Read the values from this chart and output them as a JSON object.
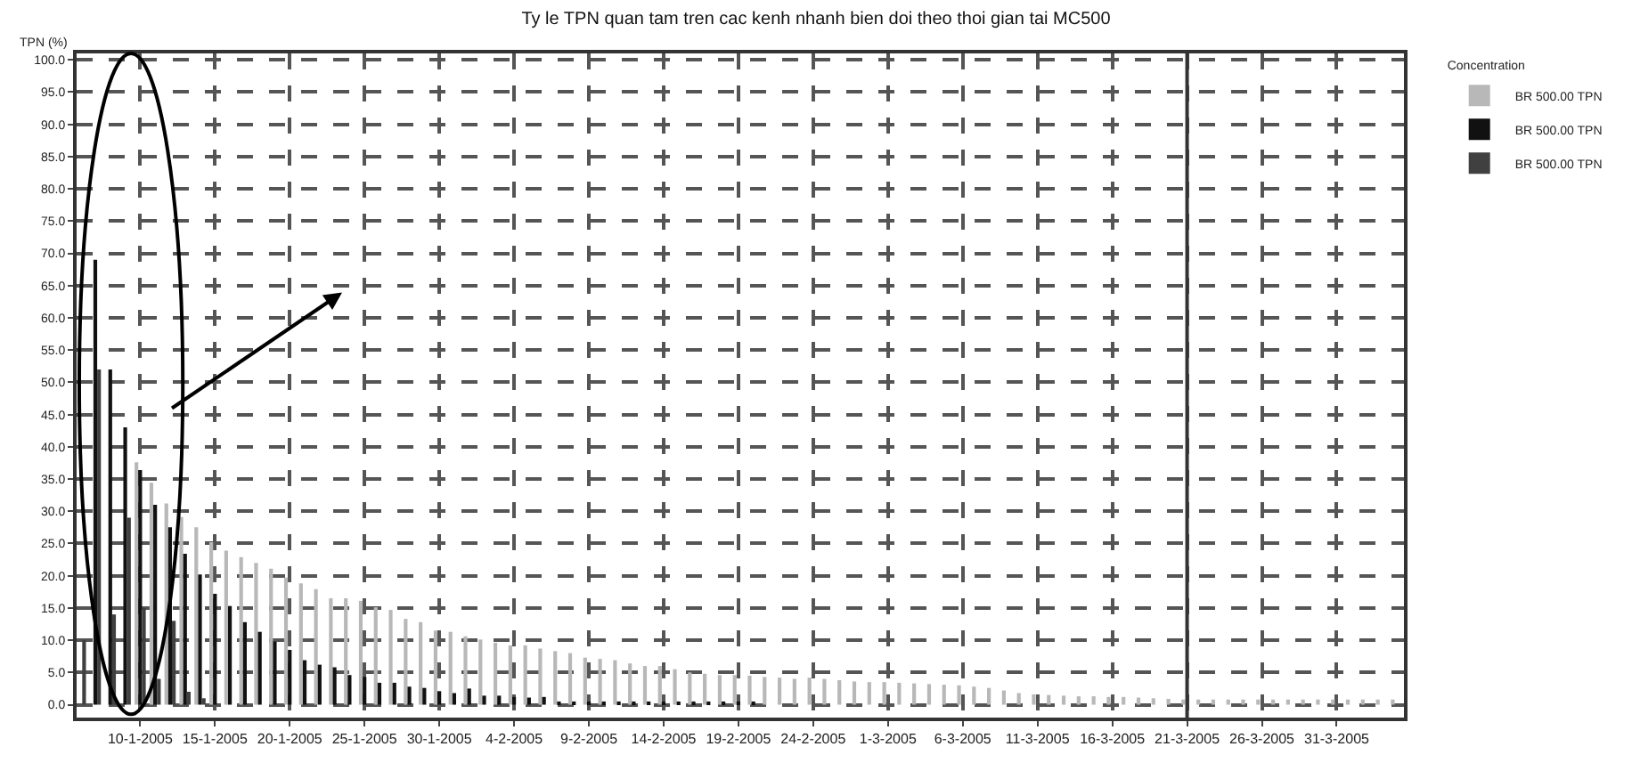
{
  "chart_data": {
    "type": "bar",
    "title": "Ty le TPN quan tam tren cac kenh nhanh bien doi theo thoi gian tai MC500",
    "ylabel": "TPN (%)",
    "legend_title": "Concentration",
    "x": [
      "2005-01-06",
      "2005-01-07",
      "2005-01-08",
      "2005-01-09",
      "2005-01-10",
      "2005-01-11",
      "2005-01-12",
      "2005-01-13",
      "2005-01-14",
      "2005-01-15",
      "2005-01-16",
      "2005-01-17",
      "2005-01-18",
      "2005-01-19",
      "2005-01-20",
      "2005-01-21",
      "2005-01-22",
      "2005-01-23",
      "2005-01-24",
      "2005-01-25",
      "2005-01-26",
      "2005-01-27",
      "2005-01-28",
      "2005-01-29",
      "2005-01-30",
      "2005-01-31",
      "2005-02-01",
      "2005-02-02",
      "2005-02-03",
      "2005-02-04",
      "2005-02-05",
      "2005-02-06",
      "2005-02-07",
      "2005-02-08",
      "2005-02-09",
      "2005-02-10",
      "2005-02-11",
      "2005-02-12",
      "2005-02-13",
      "2005-02-14",
      "2005-02-15",
      "2005-02-16",
      "2005-02-17",
      "2005-02-18",
      "2005-02-19",
      "2005-02-20",
      "2005-02-21",
      "2005-02-22",
      "2005-02-23",
      "2005-02-24",
      "2005-02-25",
      "2005-02-26",
      "2005-02-27",
      "2005-02-28",
      "2005-03-01",
      "2005-03-02",
      "2005-03-03",
      "2005-03-04",
      "2005-03-05",
      "2005-03-06",
      "2005-03-07",
      "2005-03-08",
      "2005-03-09",
      "2005-03-10",
      "2005-03-11",
      "2005-03-12",
      "2005-03-13",
      "2005-03-14",
      "2005-03-15",
      "2005-03-16",
      "2005-03-17",
      "2005-03-18",
      "2005-03-19",
      "2005-03-20",
      "2005-03-21",
      "2005-03-22",
      "2005-03-23",
      "2005-03-24",
      "2005-03-25",
      "2005-03-26",
      "2005-03-27",
      "2005-03-28",
      "2005-03-29",
      "2005-03-30",
      "2005-03-31",
      "2005-04-01",
      "2005-04-02",
      "2005-04-03",
      "2005-04-04"
    ],
    "series": [
      {
        "name": "BR 500.00 TPN",
        "color": "#b8b8b8",
        "values": [
          null,
          null,
          null,
          null,
          37.6,
          34.4,
          31.2,
          29.1,
          27.5,
          25.2,
          23.9,
          22.9,
          22.0,
          21.1,
          19.7,
          18.8,
          17.9,
          16.5,
          16.5,
          16.1,
          15.1,
          14.7,
          13.3,
          12.8,
          11.5,
          11.3,
          10.6,
          10.1,
          9.6,
          9.2,
          9.2,
          8.7,
          8.3,
          8.0,
          7.3,
          7.1,
          6.9,
          6.4,
          6.0,
          6.0,
          5.5,
          5.0,
          4.8,
          4.6,
          4.6,
          4.5,
          4.3,
          4.2,
          4.0,
          4.2,
          4.0,
          3.8,
          3.6,
          3.5,
          3.5,
          3.4,
          3.3,
          3.2,
          3.1,
          3.0,
          2.8,
          2.6,
          2.2,
          1.8,
          1.6,
          1.5,
          1.4,
          1.3,
          1.3,
          1.2,
          1.2,
          1.1,
          1.0,
          0.9,
          0.8,
          0.8,
          0.8,
          0.8,
          0.8,
          0.8,
          0.8,
          0.8,
          0.8,
          0.8,
          0.8,
          0.8,
          0.8,
          0.8,
          0.8
        ]
      },
      {
        "name": "BR 500.00 TPN",
        "color": "#111111",
        "values": [
          null,
          69,
          52,
          43,
          36.4,
          31,
          27.5,
          23.4,
          20.2,
          17.2,
          15.3,
          12.8,
          11.3,
          9.8,
          8.5,
          6.9,
          6.2,
          5.8,
          4.6,
          4.3,
          3.4,
          3.4,
          2.8,
          2.6,
          2.1,
          1.8,
          2.5,
          1.4,
          1.4,
          1.2,
          1.1,
          1.2,
          0.5,
          0.5,
          0.5,
          0.5,
          0.5,
          0.5,
          0.5,
          0.5,
          0.5,
          0.5,
          0.5,
          0.5,
          0.5,
          0.5,
          null,
          null,
          null,
          null,
          null,
          null,
          null,
          null,
          null,
          null,
          null,
          null,
          null,
          null,
          null,
          null,
          null,
          null,
          null,
          null,
          null,
          null,
          null,
          null,
          null,
          null,
          null,
          null,
          null,
          null,
          null,
          null,
          null,
          null,
          null,
          null,
          null,
          null,
          null,
          null,
          null,
          null,
          null
        ]
      },
      {
        "name": "BR 500.00 TPN",
        "color": "#404040",
        "values": [
          10,
          52,
          14,
          29,
          15,
          4,
          13,
          2,
          1,
          null,
          null,
          null,
          null,
          null,
          null,
          null,
          null,
          null,
          null,
          null,
          null,
          null,
          null,
          null,
          null,
          null,
          null,
          null,
          null,
          null,
          null,
          null,
          null,
          null,
          null,
          null,
          null,
          null,
          null,
          null,
          null,
          null,
          null,
          null,
          null,
          null,
          null,
          null,
          null,
          null,
          null,
          null,
          null,
          null,
          null,
          null,
          null,
          null,
          null,
          null,
          null,
          null,
          null,
          null,
          null,
          null,
          null,
          null,
          null,
          null,
          null,
          null,
          null,
          null,
          null,
          null,
          null,
          null,
          null,
          null,
          null,
          null,
          null,
          null,
          null,
          null,
          null,
          null,
          null
        ]
      }
    ],
    "xlim": [
      "2005-01-05T18:00",
      "2005-04-04T12:00"
    ],
    "xticks": [
      {
        "value": "2005-01-10",
        "label": "10-1-2005"
      },
      {
        "value": "2005-01-15",
        "label": "15-1-2005"
      },
      {
        "value": "2005-01-20",
        "label": "20-1-2005"
      },
      {
        "value": "2005-01-25",
        "label": "25-1-2005"
      },
      {
        "value": "2005-01-30",
        "label": "30-1-2005"
      },
      {
        "value": "2005-02-04",
        "label": "4-2-2005"
      },
      {
        "value": "2005-02-09",
        "label": "9-2-2005"
      },
      {
        "value": "2005-02-14",
        "label": "14-2-2005"
      },
      {
        "value": "2005-02-19",
        "label": "19-2-2005"
      },
      {
        "value": "2005-02-24",
        "label": "24-2-2005"
      },
      {
        "value": "2005-03-01",
        "label": "1-3-2005"
      },
      {
        "value": "2005-03-06",
        "label": "6-3-2005"
      },
      {
        "value": "2005-03-11",
        "label": "11-3-2005"
      },
      {
        "value": "2005-03-16",
        "label": "16-3-2005"
      },
      {
        "value": "2005-03-21",
        "label": "21-3-2005"
      },
      {
        "value": "2005-03-26",
        "label": "26-3-2005"
      },
      {
        "value": "2005-03-31",
        "label": "31-3-2005"
      }
    ],
    "ylim": [
      -2,
      101
    ],
    "yticks": [
      {
        "value": 0,
        "label": "0.0"
      },
      {
        "value": 5,
        "label": "5.0"
      },
      {
        "value": 10,
        "label": "10.0"
      },
      {
        "value": 15,
        "label": "15.0"
      },
      {
        "value": 20,
        "label": "20.0"
      },
      {
        "value": 25,
        "label": "25.0"
      },
      {
        "value": 30,
        "label": "30.0"
      },
      {
        "value": 35,
        "label": "35.0"
      },
      {
        "value": 40,
        "label": "40.0"
      },
      {
        "value": 45,
        "label": "45.0"
      },
      {
        "value": 50,
        "label": "50.0"
      },
      {
        "value": 55,
        "label": "55.0"
      },
      {
        "value": 60,
        "label": "60.0"
      },
      {
        "value": 65,
        "label": "65.0"
      },
      {
        "value": 70,
        "label": "70.0"
      },
      {
        "value": 75,
        "label": "75.0"
      },
      {
        "value": 80,
        "label": "80.0"
      },
      {
        "value": 85,
        "label": "85.0"
      },
      {
        "value": 90,
        "label": "90.0"
      },
      {
        "value": 95,
        "label": "95.0"
      },
      {
        "value": 100,
        "label": "100.0"
      }
    ],
    "ref_lines": [
      {
        "axis": "x",
        "value": "2005-03-21",
        "color": "#333333"
      }
    ],
    "grid": true,
    "legend": "top right"
  }
}
